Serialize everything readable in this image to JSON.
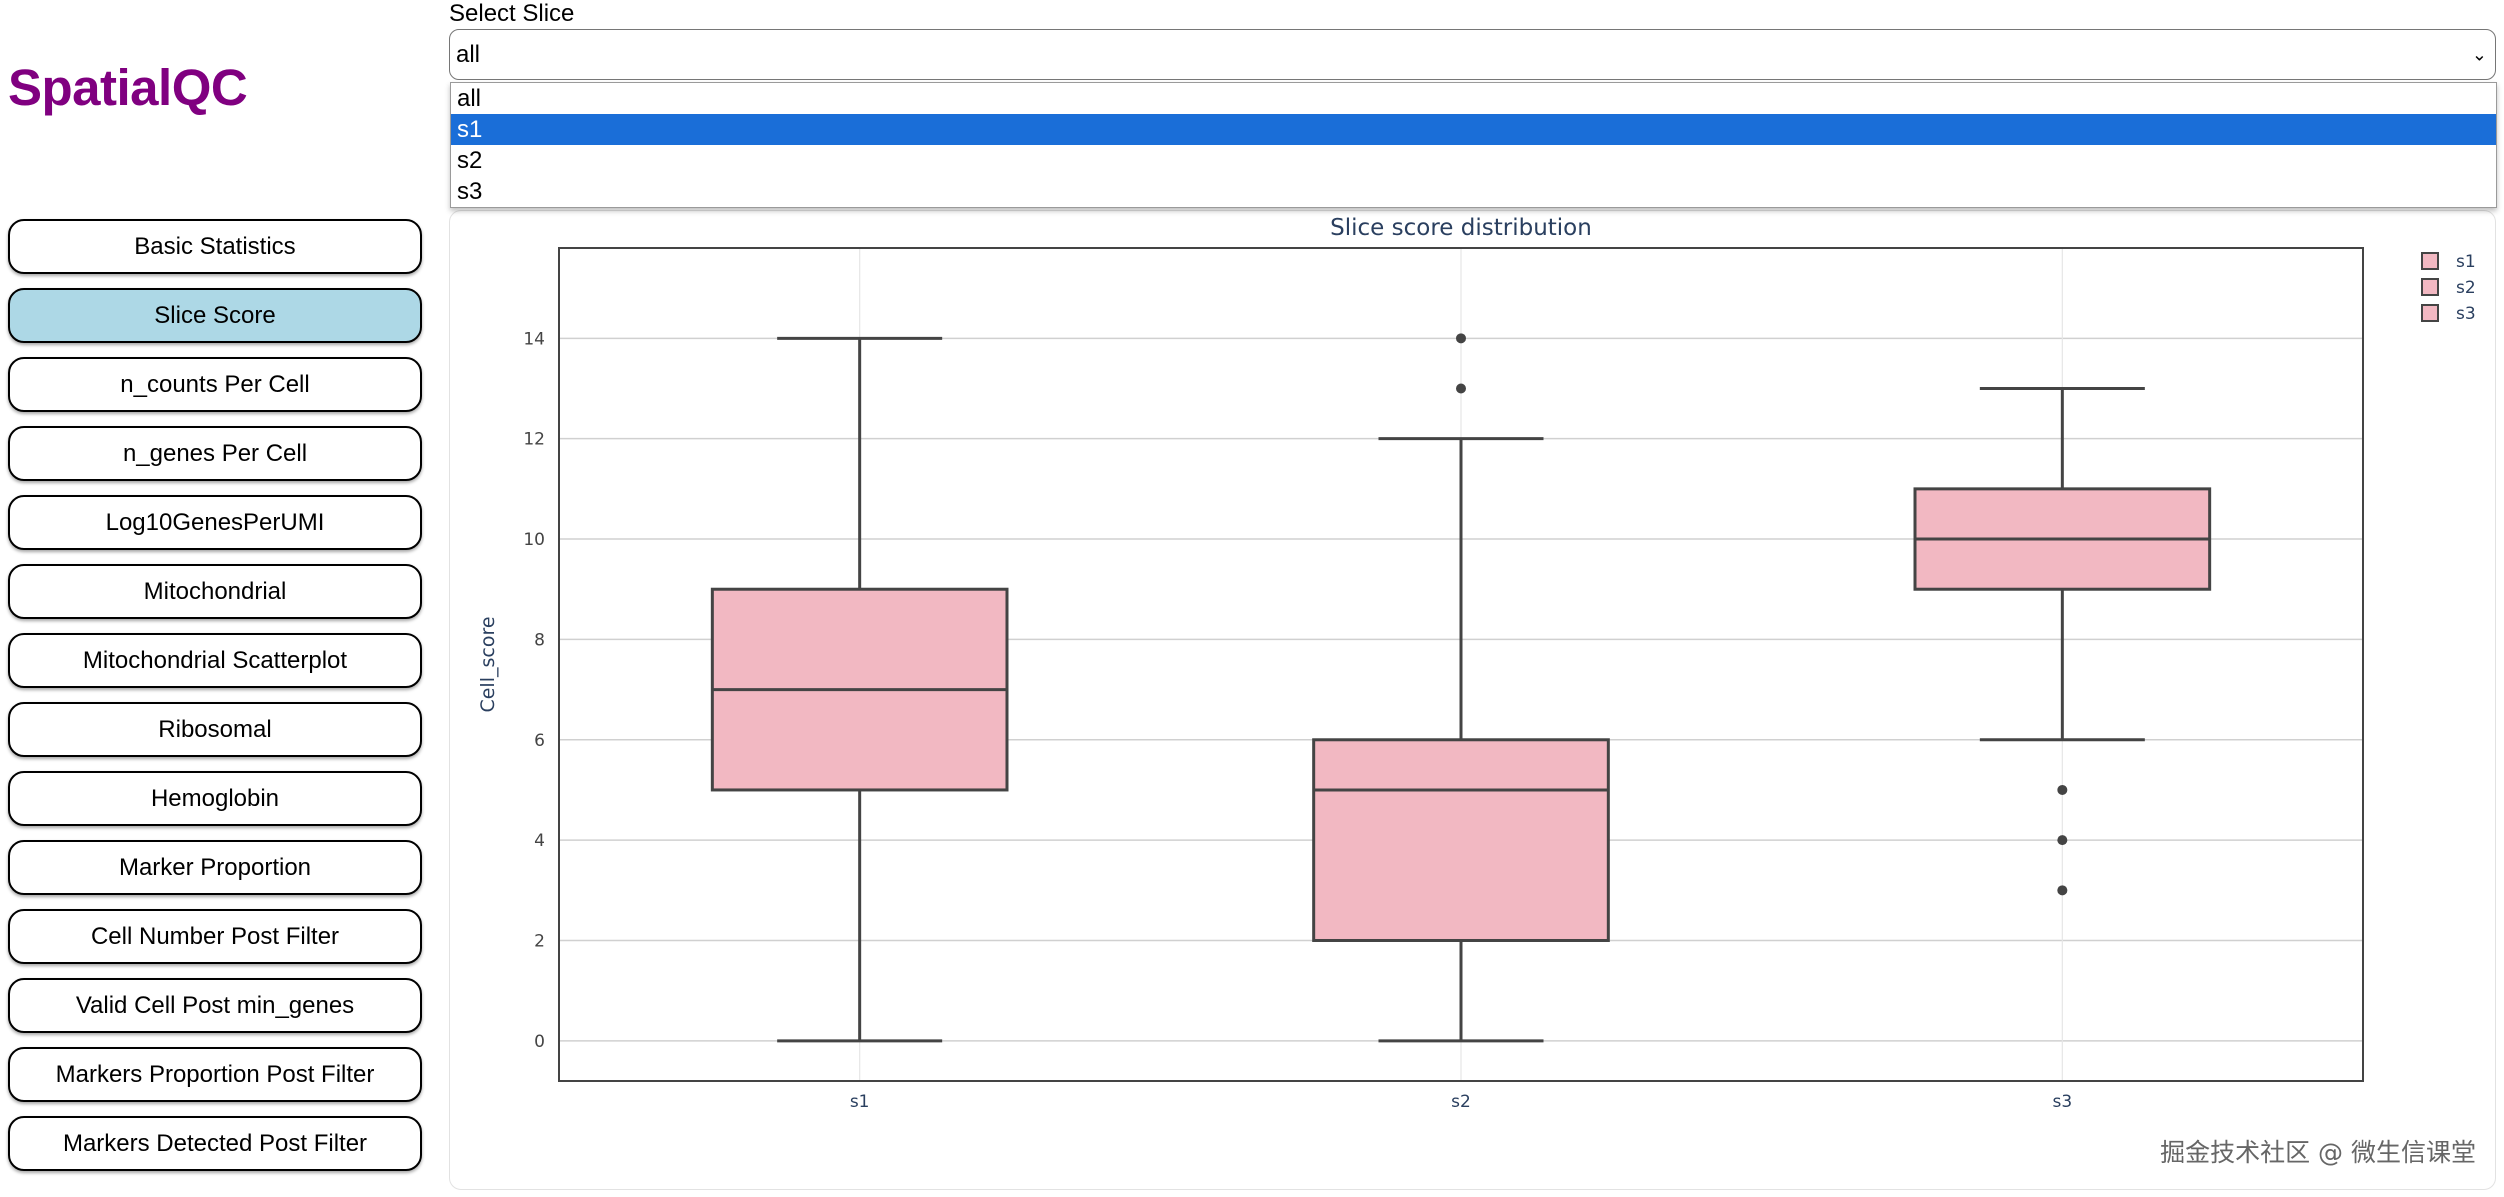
{
  "app": {
    "title": "SpatialQC"
  },
  "sidebar": {
    "items": [
      {
        "label": "Basic Statistics",
        "active": false
      },
      {
        "label": "Slice Score",
        "active": true
      },
      {
        "label": "n_counts Per Cell",
        "active": false
      },
      {
        "label": "n_genes Per Cell",
        "active": false
      },
      {
        "label": "Log10GenesPerUMI",
        "active": false
      },
      {
        "label": "Mitochondrial",
        "active": false
      },
      {
        "label": "Mitochondrial Scatterplot",
        "active": false
      },
      {
        "label": "Ribosomal",
        "active": false
      },
      {
        "label": "Hemoglobin",
        "active": false
      },
      {
        "label": "Marker Proportion",
        "active": false
      },
      {
        "label": "Cell Number Post Filter",
        "active": false
      },
      {
        "label": "Valid Cell Post min_genes",
        "active": false
      },
      {
        "label": "Markers Proportion Post Filter",
        "active": false
      },
      {
        "label": "Markers Detected Post Filter",
        "active": false
      }
    ],
    "active_color": "#add8e6"
  },
  "slice_select": {
    "label": "Select Slice",
    "value": "all",
    "options": [
      "all",
      "s1",
      "s2",
      "s3"
    ],
    "highlighted": "s1"
  },
  "chart_data": {
    "type": "box",
    "title": "Slice score distribution",
    "xlabel": "",
    "ylabel": "Cell_score",
    "categories": [
      "s1",
      "s2",
      "s3"
    ],
    "y_ticks": [
      0,
      2,
      4,
      6,
      8,
      10,
      12,
      14
    ],
    "ylim": [
      -0.8,
      15.8
    ],
    "grid": true,
    "legend_position": "top-right",
    "fill_color": "#f2b8c2",
    "line_color": "#444444",
    "series": [
      {
        "name": "s1",
        "min": 0,
        "q1": 5,
        "median": 7,
        "q3": 9,
        "max": 14,
        "outliers": []
      },
      {
        "name": "s2",
        "min": 0,
        "q1": 2,
        "median": 5,
        "q3": 6,
        "max": 12,
        "outliers": [
          13,
          14
        ]
      },
      {
        "name": "s3",
        "min": 6,
        "q1": 9,
        "median": 10,
        "q3": 11,
        "max": 13,
        "outliers": [
          3,
          4,
          5
        ]
      }
    ]
  },
  "watermark": "掘金技术社区 @ 微生信课堂"
}
